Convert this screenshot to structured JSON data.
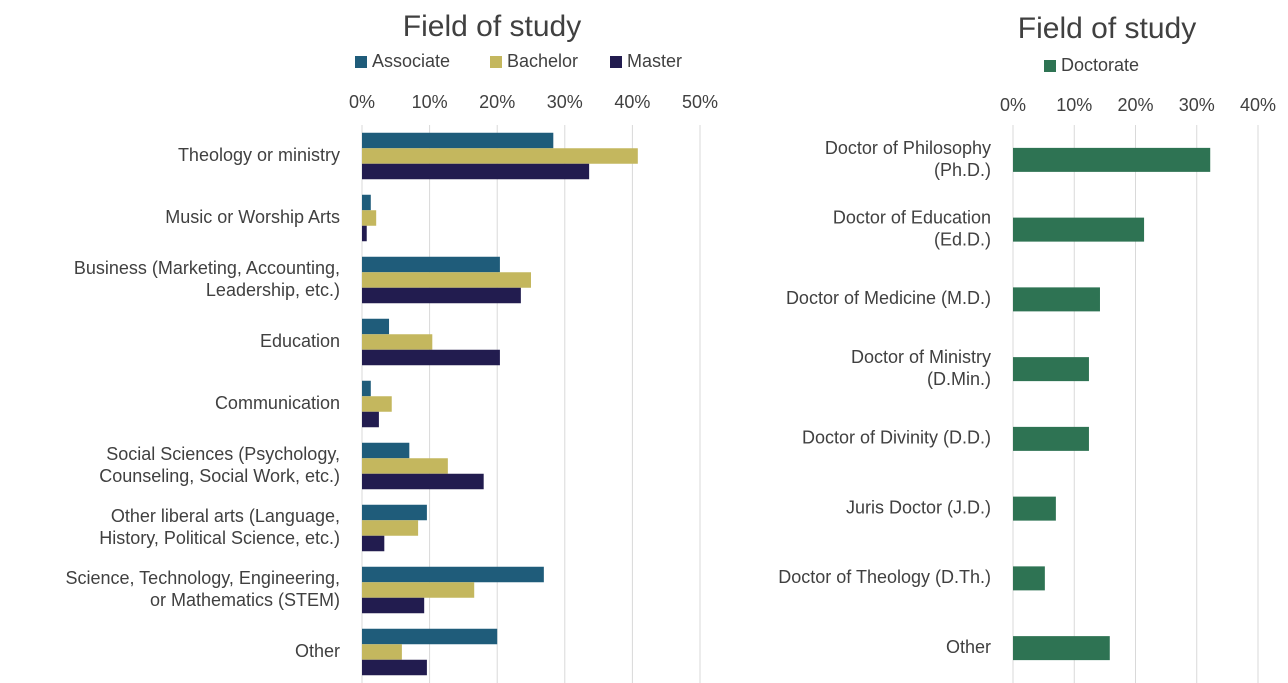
{
  "chart_data": [
    {
      "type": "bar",
      "title": "Field of study",
      "categories": [
        "Theology or ministry",
        "Music or Worship Arts",
        "Business (Marketing, Accounting,\nLeadership, etc.)",
        "Education",
        "Communication",
        "Social Sciences (Psychology,\nCounseling, Social Work, etc.)",
        "Other liberal arts (Language,\nHistory, Political Science, etc.)",
        "Science, Technology, Engineering,\nor Mathematics (STEM)",
        "Other"
      ],
      "series": [
        {
          "name": "Associate",
          "color": "#1f5c7a",
          "values": [
            28.3,
            1.3,
            20.4,
            4.0,
            1.3,
            7.0,
            9.6,
            26.9,
            20.0
          ]
        },
        {
          "name": "Bachelor",
          "color": "#c4b75e",
          "values": [
            40.8,
            2.1,
            25.0,
            10.4,
            4.4,
            12.7,
            8.3,
            16.6,
            5.9
          ]
        },
        {
          "name": "Master",
          "color": "#221c4f",
          "values": [
            33.6,
            0.7,
            23.5,
            20.4,
            2.5,
            18.0,
            3.3,
            9.2,
            9.6
          ]
        }
      ],
      "xlim": [
        0,
        50
      ],
      "xticks": [
        {
          "value": 0,
          "label": "0%"
        },
        {
          "value": 10,
          "label": "10%"
        },
        {
          "value": 20,
          "label": "20%"
        },
        {
          "value": 30,
          "label": "30%"
        },
        {
          "value": 40,
          "label": "40%"
        },
        {
          "value": 50,
          "label": "50%"
        }
      ],
      "grid": true
    },
    {
      "type": "bar",
      "title": "Field of study",
      "categories": [
        "Doctor of Philosophy\n(Ph.D.)",
        "Doctor of Education\n(Ed.D.)",
        "Doctor of Medicine (M.D.)",
        "Doctor of Ministry\n(D.Min.)",
        "Doctor of Divinity (D.D.)",
        "Juris Doctor (J.D.)",
        "Doctor of Theology (D.Th.)",
        "Other"
      ],
      "series": [
        {
          "name": "Doctorate",
          "color": "#2e7353",
          "values": [
            32.2,
            21.4,
            14.2,
            12.4,
            12.4,
            7.0,
            5.2,
            15.8
          ]
        }
      ],
      "xlim": [
        0,
        40
      ],
      "xticks": [
        {
          "value": 0,
          "label": "0%"
        },
        {
          "value": 10,
          "label": "10%"
        },
        {
          "value": 20,
          "label": "20%"
        },
        {
          "value": 30,
          "label": "30%"
        },
        {
          "value": 40,
          "label": "40%"
        }
      ],
      "grid": true
    }
  ]
}
